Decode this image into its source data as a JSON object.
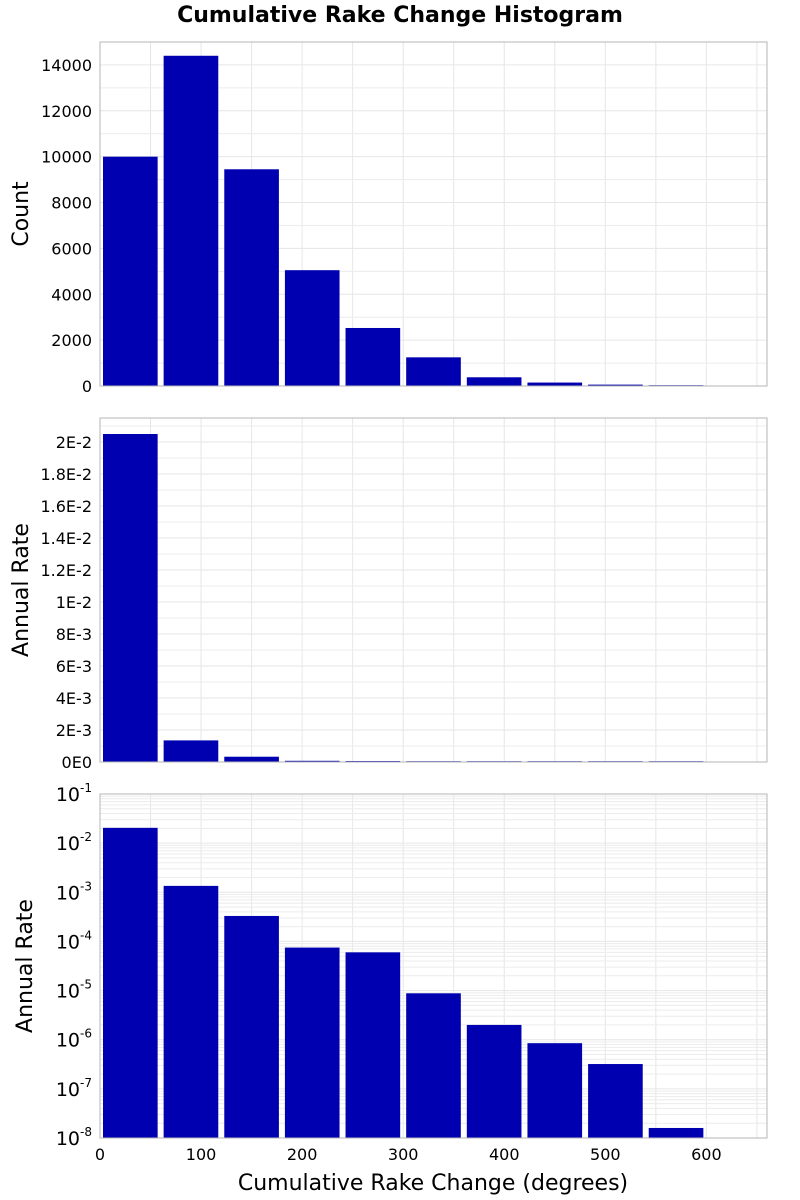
{
  "figure": {
    "title": "Cumulative Rake Change Histogram",
    "xlabel": "Cumulative Rake Change (degrees)",
    "bar_color": "#0000b0"
  },
  "chart_data": [
    {
      "type": "bar",
      "ylabel": "Count",
      "yscale": "linear",
      "x_bin_width": 60,
      "x": [
        30,
        90,
        150,
        210,
        270,
        330,
        390,
        450,
        510,
        570
      ],
      "values": [
        10000,
        14400,
        9450,
        5050,
        2530,
        1250,
        380,
        150,
        60,
        30
      ],
      "xlim": [
        0,
        660
      ],
      "ylim": [
        0,
        15000
      ],
      "yticks": [
        0,
        2000,
        4000,
        6000,
        8000,
        10000,
        12000,
        14000
      ],
      "ytick_labels": [
        "0",
        "2000",
        "4000",
        "6000",
        "8000",
        "10000",
        "12000",
        "14000"
      ],
      "grid": true
    },
    {
      "type": "bar",
      "ylabel": "Annual Rate",
      "yscale": "linear",
      "x_bin_width": 60,
      "x": [
        30,
        90,
        150,
        210,
        270,
        330,
        390,
        450,
        510,
        570
      ],
      "values": [
        0.0205,
        0.00135,
        0.00033,
        7.5e-05,
        6e-05,
        8.8e-06,
        2e-06,
        8.5e-07,
        3.2e-07,
        1.6e-08
      ],
      "xlim": [
        0,
        660
      ],
      "ylim": [
        0,
        0.0215
      ],
      "yticks": [
        0,
        0.002,
        0.004,
        0.006,
        0.008,
        0.01,
        0.012,
        0.014,
        0.016,
        0.018,
        0.02
      ],
      "ytick_labels": [
        "0E0",
        "2E-3",
        "4E-3",
        "6E-3",
        "8E-3",
        "1E-2",
        "1.2E-2",
        "1.4E-2",
        "1.6E-2",
        "1.8E-2",
        "2E-2"
      ],
      "grid": true
    },
    {
      "type": "bar",
      "ylabel": "Annual Rate",
      "yscale": "log",
      "x_bin_width": 60,
      "x": [
        30,
        90,
        150,
        210,
        270,
        330,
        390,
        450,
        510,
        570
      ],
      "values": [
        0.0205,
        0.00135,
        0.00033,
        7.5e-05,
        6e-05,
        8.8e-06,
        2e-06,
        8.5e-07,
        3.2e-07,
        1.6e-08
      ],
      "xlim": [
        0,
        660
      ],
      "ylim": [
        1e-08,
        0.1
      ],
      "ytick_base": "10",
      "ytick_exponents": [
        "-8",
        "-7",
        "-6",
        "-5",
        "-4",
        "-3",
        "-2",
        "-1"
      ],
      "xticks": [
        0,
        100,
        200,
        300,
        400,
        500,
        600
      ],
      "xtick_labels": [
        "0",
        "100",
        "200",
        "300",
        "400",
        "500",
        "600"
      ],
      "grid": true
    }
  ]
}
